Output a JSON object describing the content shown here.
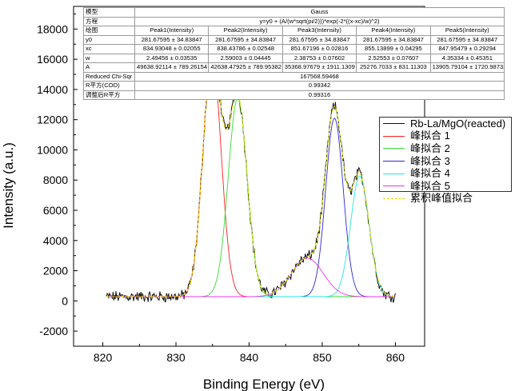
{
  "chart_data": {
    "type": "line",
    "title": "",
    "xlabel": "Binding Energy (eV)",
    "ylabel": "Intensity (a.u.)",
    "xlim": [
      816,
      864
    ],
    "ylim": [
      -3000,
      19500
    ],
    "x_ticks": [
      820,
      830,
      840,
      850,
      860
    ],
    "y_ticks": [
      -2000,
      0,
      2000,
      4000,
      6000,
      8000,
      10000,
      12000,
      14000,
      16000,
      18000
    ],
    "baseline_y0": 281.67595,
    "peaks": [
      {
        "name": "峰拟合 1",
        "label": "Peak1(Intensity)",
        "xc": 834.93048,
        "w": 2.49456,
        "A": 49638.92114,
        "color": "#ff2020"
      },
      {
        "name": "峰拟合 2",
        "label": "Peak2(Intensity)",
        "xc": 838.43786,
        "w": 2.59003,
        "A": 42638.47925,
        "color": "#33dd33"
      },
      {
        "name": "峰拟合 3",
        "label": "Peak3(Intensity)",
        "xc": 851.67196,
        "w": 2.38753,
        "A": 35368.97679,
        "color": "#2a2ad8"
      },
      {
        "name": "峰拟合 4",
        "label": "Peak4(Intensity)",
        "xc": 855.13899,
        "w": 2.52553,
        "A": 25276.7033,
        "color": "#22e6e6"
      },
      {
        "name": "峰拟合 5",
        "label": "Peak5(Intensity)",
        "xc": 847.95479,
        "w": 4.35334,
        "A": 13905.79104,
        "color": "#ee33ee"
      }
    ],
    "series": [
      {
        "name": "Rb-La/MgO(reacted)",
        "style": "noisy-data",
        "color": "#111111",
        "range": [
          820.5,
          860
        ]
      },
      {
        "name": "累积峰值拟合",
        "style": "cumulative-fit",
        "color": "#e6e600",
        "range": [
          820.5,
          860
        ]
      }
    ],
    "legend": {
      "position": "right",
      "entries": [
        {
          "label": "Rb-La/MgO(reacted)",
          "color": "#111111"
        },
        {
          "label": "峰拟合 1",
          "color": "#ff2020"
        },
        {
          "label": "峰拟合 2",
          "color": "#33dd33"
        },
        {
          "label": "峰拟合 3",
          "color": "#2a2ad8"
        },
        {
          "label": "峰拟合 4",
          "color": "#22e6e6"
        },
        {
          "label": "峰拟合 5",
          "color": "#ee33ee"
        },
        {
          "label": "累积峰值拟合",
          "color": "#d8d800"
        }
      ]
    },
    "fit_table": {
      "title_row": [
        "模型",
        "Gauss"
      ],
      "equation_row": [
        "方程",
        "y=y0 + (A/(w*sqrt(pi/2)))*exp(-2*((x-xc)/w)^2)"
      ],
      "header_row": [
        "绘图",
        "Peak1(Intensity)",
        "Peak2(Intensity)",
        "Peak3(Intensity)",
        "Peak4(Intensity)",
        "Peak5(Intensity)"
      ],
      "param_rows": [
        [
          "y0",
          "281.67595 ± 34.83847",
          "281.67595 ± 34.83847",
          "281.67595 ± 34.83847",
          "281.67595 ± 34.83847",
          "281.67595 ± 34.83847"
        ],
        [
          "xc",
          "834.93048 ± 0.02055",
          "838.43786 ± 0.02548",
          "851.67196 ± 0.02816",
          "855.13899 ± 0.04295",
          "847.95479 ± 0.29294"
        ],
        [
          "w",
          "2.49456 ± 0.03535",
          "2.59003 ± 0.04445",
          "2.38753 ± 0.07602",
          "2.52553 ± 0.07607",
          "4.35334 ± 0.45351"
        ],
        [
          "A",
          "49638.92114 ± 789.26154",
          "42638.47925 ± 789.95382",
          "35368.97679 ± 1911.1309",
          "25276.7033 ± 831.11303",
          "13905.79104 ± 1720.98732"
        ]
      ],
      "stat_rows": [
        [
          "Reduced Chi-Sqr",
          "167568.59468"
        ],
        [
          "R平方(COD)",
          "0.99342"
        ],
        [
          "调整后R平方",
          "0.99316"
        ]
      ]
    }
  }
}
